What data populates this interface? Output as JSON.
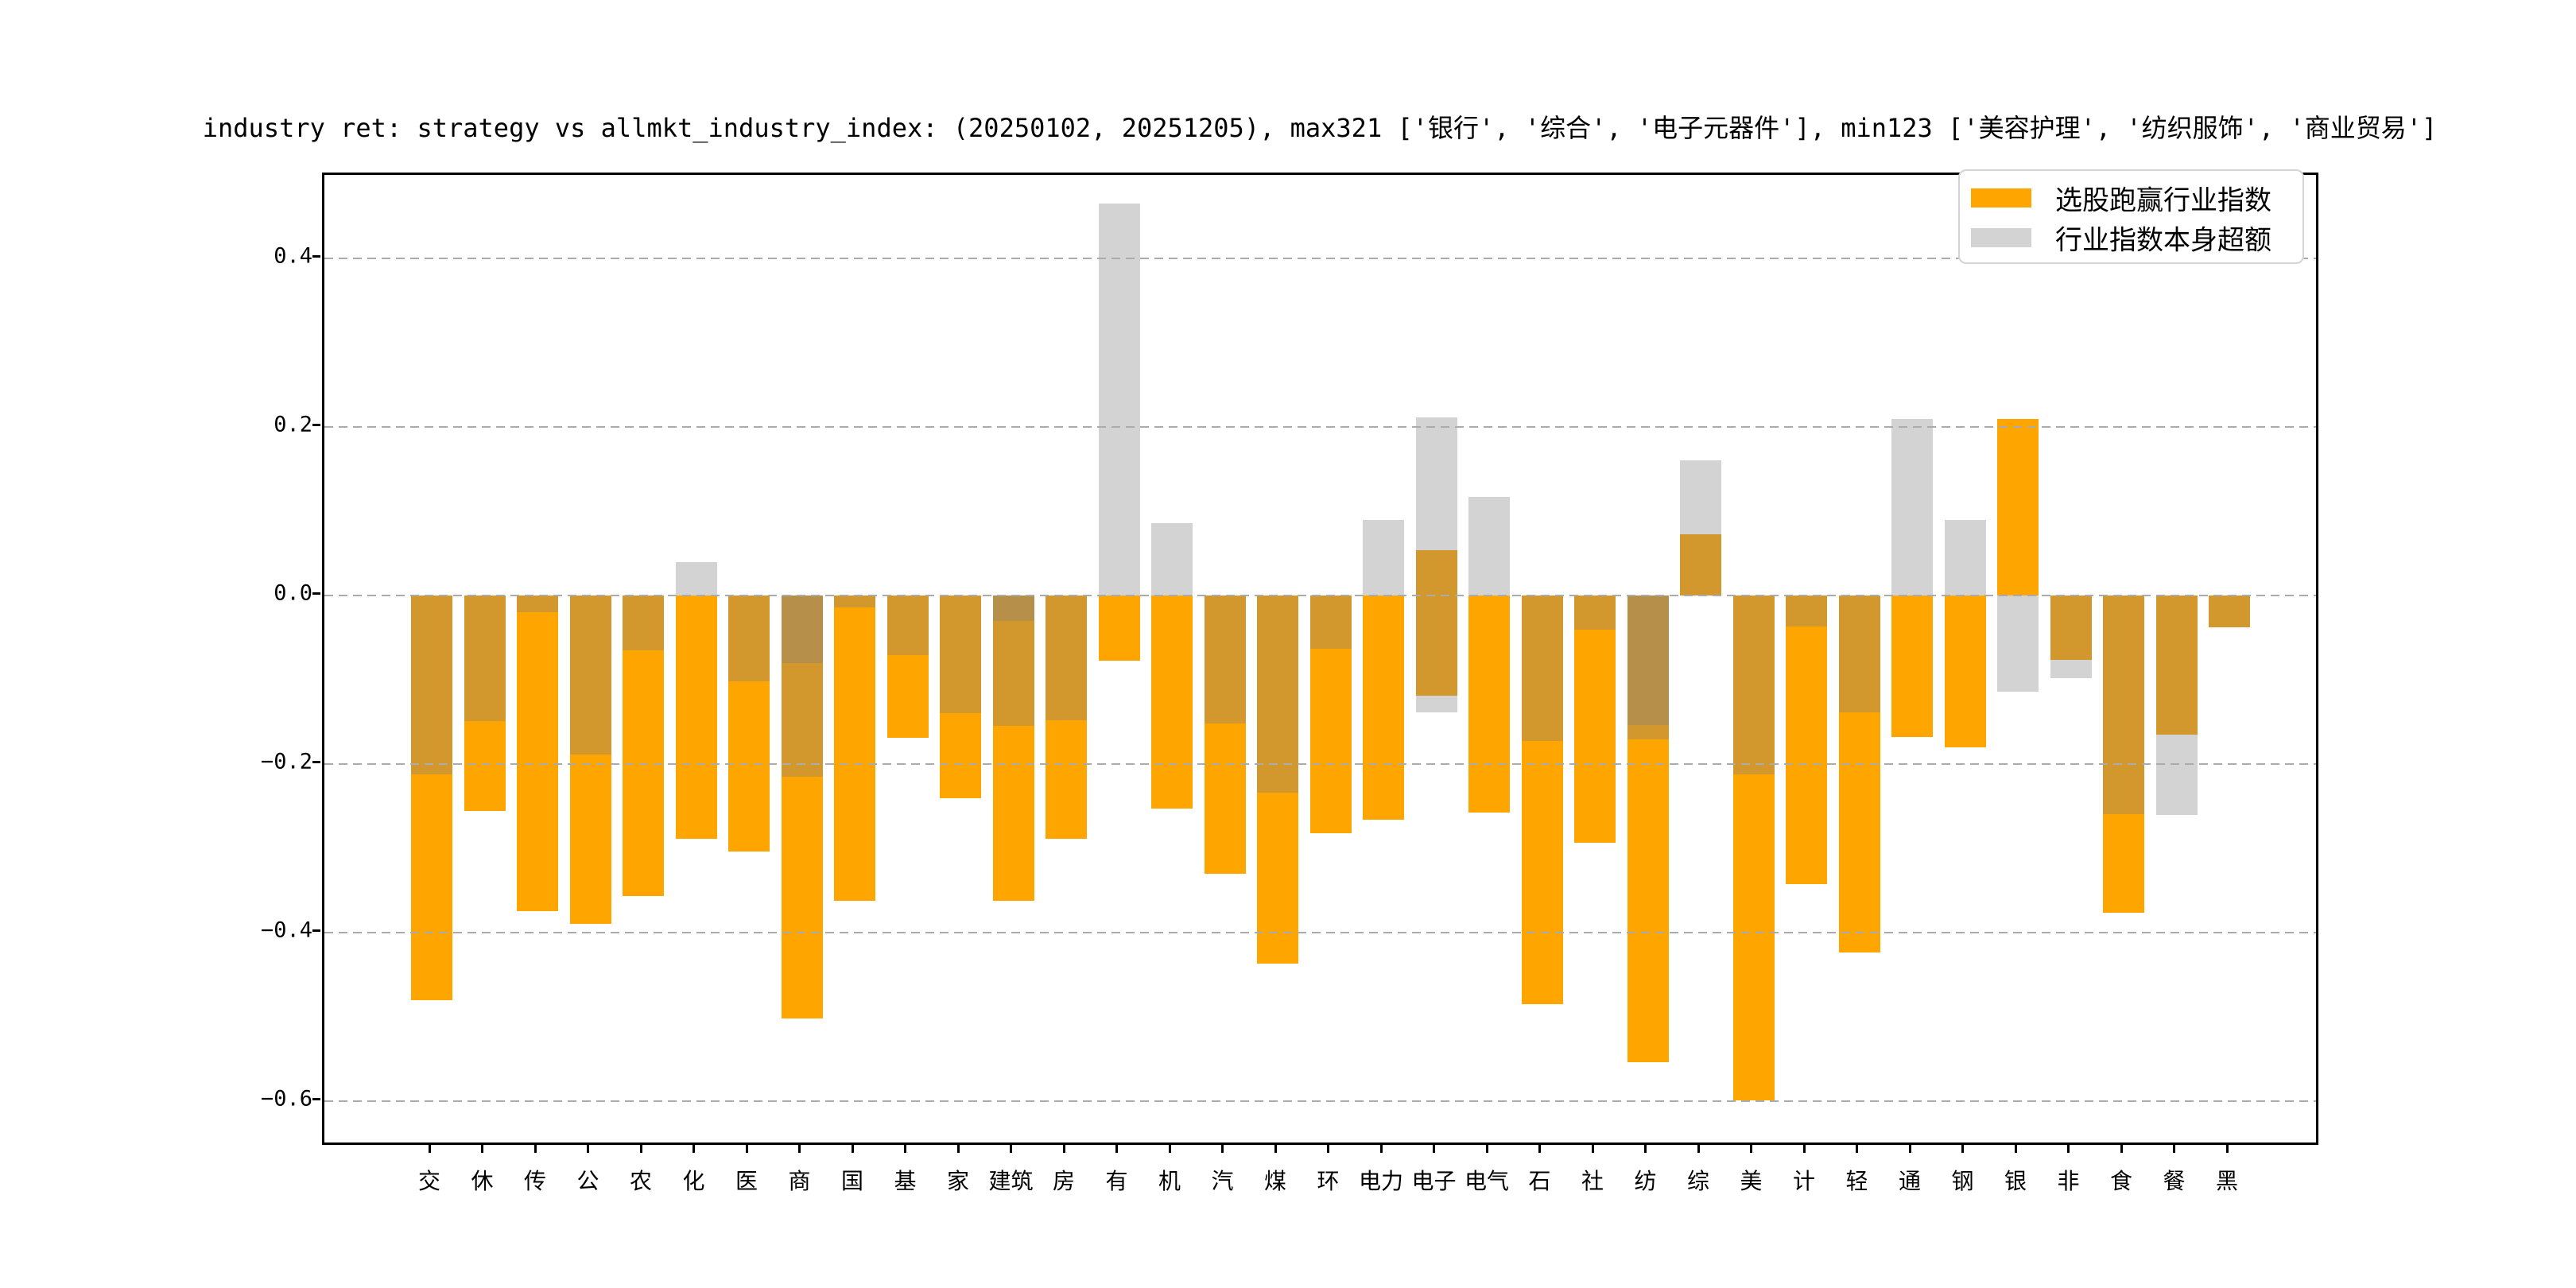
{
  "title": "industry ret: strategy vs allmkt_industry_index: (20250102, 20251205), max321 ['银行', '综合', '电子元器件'], min123 ['美容护理', '纺织服饰', '商业贸易']",
  "legend": {
    "items": [
      {
        "label": "选股跑赢行业指数",
        "color": "#FFA500"
      },
      {
        "label": "行业指数本身超额",
        "color": "#D3D3D3"
      }
    ]
  },
  "colors": {
    "orange": "#FFA500",
    "gray": "#D3D3D3",
    "tan": "#D3982D",
    "dark": "#B6904A",
    "grid": "#ababab"
  },
  "axes": {
    "y_ticks": [
      0.4,
      0.2,
      0.0,
      -0.2,
      -0.4,
      -0.6
    ],
    "y_tick_labels": [
      "0.4",
      "0.2",
      "0.0",
      "−0.2",
      "−0.4",
      "−0.6"
    ],
    "ylim": [
      -0.655,
      0.5
    ],
    "grid": "dashed"
  },
  "chart_data": {
    "type": "bar",
    "title": "industry ret: strategy vs allmkt_industry_index: (20250102, 20251205), max321 ['银行', '综合', '电子元器件'], min123 ['美容护理', '纺织服饰', '商业贸易']",
    "xlabel": "",
    "ylabel": "",
    "ylim": [
      -0.655,
      0.5
    ],
    "legend_position": "upper right",
    "series_names": [
      "选股跑赢行业指数",
      "行业指数本身超额"
    ],
    "categories": [
      "交",
      "休",
      "传",
      "公",
      "农",
      "化",
      "医",
      "商",
      "国",
      "基",
      "家",
      "建筑",
      "房",
      "有",
      "机",
      "汽",
      "煤",
      "环",
      "电力",
      "电子",
      "电气",
      "石",
      "社",
      "纺",
      "综",
      "美",
      "计",
      "轻",
      "通",
      "钢",
      "银",
      "非",
      "食",
      "餐",
      "黑"
    ],
    "industries": [
      {
        "label": "交",
        "selection_excess": -0.48,
        "index_excess": -0.212,
        "seg": [
          [
            "tan",
            0,
            -0.212
          ],
          [
            "orange",
            -0.212,
            -0.48
          ]
        ]
      },
      {
        "label": "休",
        "selection_excess": -0.256,
        "index_excess": -0.149,
        "seg": [
          [
            "tan",
            0,
            -0.149
          ],
          [
            "orange",
            -0.149,
            -0.256
          ]
        ]
      },
      {
        "label": "传",
        "selection_excess": -0.375,
        "index_excess": -0.02,
        "seg": [
          [
            "tan",
            0,
            -0.02
          ],
          [
            "orange",
            -0.02,
            -0.375
          ]
        ]
      },
      {
        "label": "公",
        "selection_excess": -0.39,
        "index_excess": -0.189,
        "seg": [
          [
            "tan",
            0,
            -0.189
          ],
          [
            "orange",
            -0.189,
            -0.39
          ]
        ]
      },
      {
        "label": "农",
        "selection_excess": -0.357,
        "index_excess": -0.065,
        "seg": [
          [
            "tan",
            0,
            -0.065
          ],
          [
            "orange",
            -0.065,
            -0.357
          ]
        ]
      },
      {
        "label": "化",
        "selection_excess": -0.289,
        "index_excess": 0.04,
        "seg": [
          [
            "gray",
            0.04,
            0
          ],
          [
            "orange",
            0,
            -0.289
          ]
        ]
      },
      {
        "label": "医",
        "selection_excess": -0.304,
        "index_excess": -0.102,
        "seg": [
          [
            "tan",
            0,
            -0.102
          ],
          [
            "orange",
            -0.102,
            -0.304
          ]
        ]
      },
      {
        "label": "商",
        "selection_excess": -0.502,
        "index_excess": -0.215,
        "seg": [
          [
            "dark",
            0,
            -0.08
          ],
          [
            "tan",
            -0.08,
            -0.215
          ],
          [
            "orange",
            -0.215,
            -0.502
          ]
        ]
      },
      {
        "label": "国",
        "selection_excess": -0.362,
        "index_excess": -0.014,
        "seg": [
          [
            "tan",
            0,
            -0.014
          ],
          [
            "orange",
            -0.014,
            -0.362
          ]
        ]
      },
      {
        "label": "基",
        "selection_excess": -0.169,
        "index_excess": -0.071,
        "seg": [
          [
            "tan",
            0,
            -0.071
          ],
          [
            "orange",
            -0.071,
            -0.169
          ]
        ]
      },
      {
        "label": "家",
        "selection_excess": -0.241,
        "index_excess": -0.14,
        "seg": [
          [
            "tan",
            0,
            -0.14
          ],
          [
            "orange",
            -0.14,
            -0.241
          ]
        ]
      },
      {
        "label": "建筑",
        "selection_excess": -0.362,
        "index_excess": -0.155,
        "seg": [
          [
            "dark",
            0,
            -0.03
          ],
          [
            "tan",
            -0.03,
            -0.155
          ],
          [
            "orange",
            -0.155,
            -0.362
          ]
        ]
      },
      {
        "label": "房",
        "selection_excess": -0.289,
        "index_excess": -0.148,
        "seg": [
          [
            "tan",
            0,
            -0.148
          ],
          [
            "orange",
            -0.148,
            -0.289
          ]
        ]
      },
      {
        "label": "有",
        "selection_excess": -0.077,
        "index_excess": 0.465,
        "seg": [
          [
            "gray",
            0.465,
            0
          ],
          [
            "orange",
            0,
            -0.077
          ]
        ]
      },
      {
        "label": "机",
        "selection_excess": -0.253,
        "index_excess": 0.086,
        "seg": [
          [
            "gray",
            0.086,
            0
          ],
          [
            "orange",
            0,
            -0.253
          ]
        ]
      },
      {
        "label": "汽",
        "selection_excess": -0.33,
        "index_excess": -0.152,
        "seg": [
          [
            "tan",
            0,
            -0.152
          ],
          [
            "orange",
            -0.152,
            -0.33
          ]
        ]
      },
      {
        "label": "煤",
        "selection_excess": -0.437,
        "index_excess": -0.234,
        "seg": [
          [
            "tan",
            0,
            -0.234
          ],
          [
            "orange",
            -0.234,
            -0.437
          ]
        ]
      },
      {
        "label": "环",
        "selection_excess": -0.282,
        "index_excess": -0.063,
        "seg": [
          [
            "tan",
            0,
            -0.063
          ],
          [
            "orange",
            -0.063,
            -0.282
          ]
        ]
      },
      {
        "label": "电力",
        "selection_excess": -0.266,
        "index_excess": 0.09,
        "seg": [
          [
            "gray",
            0.09,
            0
          ],
          [
            "orange",
            0,
            -0.266
          ]
        ]
      },
      {
        "label": "电子",
        "selection_excess": 0.054,
        "index_excess": 0.211,
        "seg": [
          [
            "gray",
            0.211,
            0.054
          ],
          [
            "tan",
            0.054,
            -0.119
          ],
          [
            "gray",
            -0.119,
            -0.139
          ]
        ]
      },
      {
        "label": "电气",
        "selection_excess": -0.258,
        "index_excess": 0.117,
        "seg": [
          [
            "gray",
            0.117,
            0
          ],
          [
            "orange",
            0,
            -0.258
          ]
        ]
      },
      {
        "label": "石",
        "selection_excess": -0.485,
        "index_excess": -0.173,
        "seg": [
          [
            "tan",
            0,
            -0.173
          ],
          [
            "orange",
            -0.173,
            -0.485
          ]
        ]
      },
      {
        "label": "社",
        "selection_excess": -0.293,
        "index_excess": -0.041,
        "seg": [
          [
            "tan",
            0,
            -0.041
          ],
          [
            "orange",
            -0.041,
            -0.293
          ]
        ]
      },
      {
        "label": "纺",
        "selection_excess": -0.554,
        "index_excess": -0.171,
        "seg": [
          [
            "dark",
            0,
            -0.154
          ],
          [
            "tan",
            -0.154,
            -0.171
          ],
          [
            "orange",
            -0.171,
            -0.554
          ]
        ]
      },
      {
        "label": "综",
        "selection_excess": 0.073,
        "index_excess": 0.16,
        "seg": [
          [
            "gray",
            0.16,
            0.073
          ],
          [
            "tan",
            0.073,
            0
          ]
        ]
      },
      {
        "label": "美",
        "selection_excess": -0.599,
        "index_excess": -0.212,
        "seg": [
          [
            "tan",
            0,
            -0.212
          ],
          [
            "orange",
            -0.212,
            -0.599
          ]
        ]
      },
      {
        "label": "计",
        "selection_excess": -0.342,
        "index_excess": -0.037,
        "seg": [
          [
            "tan",
            0,
            -0.037
          ],
          [
            "orange",
            -0.037,
            -0.342
          ]
        ]
      },
      {
        "label": "轻",
        "selection_excess": -0.424,
        "index_excess": -0.139,
        "seg": [
          [
            "tan",
            0,
            -0.139
          ],
          [
            "orange",
            -0.139,
            -0.424
          ]
        ]
      },
      {
        "label": "通",
        "selection_excess": -0.168,
        "index_excess": 0.209,
        "seg": [
          [
            "gray",
            0.209,
            0
          ],
          [
            "orange",
            0,
            -0.168
          ]
        ]
      },
      {
        "label": "钢",
        "selection_excess": -0.18,
        "index_excess": 0.09,
        "seg": [
          [
            "gray",
            0.09,
            0
          ],
          [
            "orange",
            0,
            -0.18
          ]
        ]
      },
      {
        "label": "银",
        "selection_excess": 0.209,
        "index_excess": -0.114,
        "seg": [
          [
            "orange",
            0.209,
            0
          ],
          [
            "gray",
            0,
            -0.114
          ]
        ]
      },
      {
        "label": "非",
        "selection_excess": -0.076,
        "index_excess": -0.098,
        "seg": [
          [
            "tan",
            0,
            -0.076
          ],
          [
            "gray",
            -0.076,
            -0.098
          ]
        ]
      },
      {
        "label": "食",
        "selection_excess": -0.376,
        "index_excess": -0.259,
        "seg": [
          [
            "tan",
            0,
            -0.259
          ],
          [
            "orange",
            -0.259,
            -0.376
          ]
        ]
      },
      {
        "label": "餐",
        "selection_excess": -0.165,
        "index_excess": -0.26,
        "seg": [
          [
            "tan",
            0,
            -0.165
          ],
          [
            "gray",
            -0.165,
            -0.26
          ]
        ]
      },
      {
        "label": "黑",
        "selection_excess": -0.038,
        "index_excess": -0.038,
        "seg": [
          [
            "tan",
            0,
            -0.038
          ]
        ]
      }
    ]
  }
}
